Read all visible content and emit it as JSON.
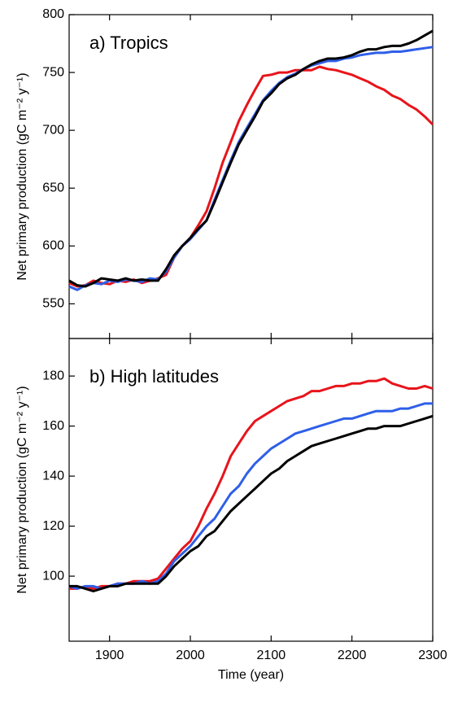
{
  "chart_data": [
    {
      "type": "line",
      "title": "a) Tropics",
      "y_label": "Net primary production (gC m⁻² y⁻¹)",
      "x": [
        1850,
        1860,
        1870,
        1880,
        1890,
        1900,
        1910,
        1920,
        1930,
        1940,
        1950,
        1960,
        1970,
        1980,
        1990,
        2000,
        2010,
        2020,
        2030,
        2040,
        2050,
        2060,
        2070,
        2080,
        2090,
        2100,
        2110,
        2120,
        2130,
        2140,
        2150,
        2160,
        2170,
        2180,
        2190,
        2200,
        2210,
        2220,
        2230,
        2240,
        2250,
        2260,
        2270,
        2280,
        2290,
        2300
      ],
      "series": [
        {
          "color": "#e8141b",
          "values": [
            568,
            565,
            566,
            570,
            568,
            567,
            570,
            569,
            571,
            568,
            570,
            572,
            575,
            590,
            600,
            607,
            618,
            630,
            650,
            672,
            690,
            708,
            722,
            735,
            747,
            748,
            750,
            750,
            752,
            752,
            752,
            755,
            753,
            752,
            750,
            748,
            745,
            742,
            738,
            735,
            730,
            727,
            722,
            718,
            712,
            705
          ]
        },
        {
          "color": "#2f5fe8",
          "values": [
            565,
            562,
            566,
            568,
            567,
            570,
            569,
            571,
            570,
            569,
            572,
            571,
            578,
            590,
            600,
            606,
            614,
            622,
            640,
            657,
            674,
            690,
            702,
            714,
            726,
            734,
            741,
            746,
            749,
            753,
            756,
            758,
            760,
            760,
            762,
            763,
            765,
            766,
            767,
            767,
            768,
            768,
            769,
            770,
            771,
            772
          ]
        },
        {
          "color": "#000000",
          "values": [
            570,
            566,
            565,
            568,
            572,
            571,
            570,
            572,
            570,
            571,
            570,
            570,
            580,
            592,
            600,
            607,
            615,
            622,
            638,
            655,
            672,
            688,
            700,
            712,
            725,
            732,
            740,
            745,
            748,
            753,
            757,
            760,
            762,
            762,
            763,
            765,
            768,
            770,
            770,
            772,
            773,
            773,
            775,
            778,
            782,
            786
          ]
        }
      ],
      "ylim": [
        520,
        800
      ],
      "yticks": [
        550,
        600,
        650,
        700,
        750,
        800
      ]
    },
    {
      "type": "line",
      "title": "b) High latitudes",
      "y_label": "Net primary production (gC m⁻² y⁻¹)",
      "x_label": "Time (year)",
      "x": [
        1850,
        1860,
        1870,
        1880,
        1890,
        1900,
        1910,
        1920,
        1930,
        1940,
        1950,
        1960,
        1970,
        1980,
        1990,
        2000,
        2010,
        2020,
        2030,
        2040,
        2050,
        2060,
        2070,
        2080,
        2090,
        2100,
        2110,
        2120,
        2130,
        2140,
        2150,
        2160,
        2170,
        2180,
        2190,
        2200,
        2210,
        2220,
        2230,
        2240,
        2250,
        2260,
        2270,
        2280,
        2290,
        2300
      ],
      "series": [
        {
          "color": "#e8141b",
          "values": [
            95,
            95,
            96,
            95,
            96,
            96,
            97,
            97,
            98,
            98,
            98,
            99,
            103,
            107,
            111,
            114,
            120,
            127,
            133,
            140,
            148,
            153,
            158,
            162,
            164,
            166,
            168,
            170,
            171,
            172,
            174,
            174,
            175,
            176,
            176,
            177,
            177,
            178,
            178,
            179,
            177,
            176,
            175,
            175,
            176,
            175
          ]
        },
        {
          "color": "#2f5fe8",
          "values": [
            96,
            95,
            96,
            96,
            95,
            96,
            97,
            97,
            97,
            98,
            97,
            98,
            101,
            106,
            109,
            112,
            116,
            120,
            123,
            128,
            133,
            136,
            141,
            145,
            148,
            151,
            153,
            155,
            157,
            158,
            159,
            160,
            161,
            162,
            163,
            163,
            164,
            165,
            166,
            166,
            166,
            167,
            167,
            168,
            169,
            169
          ]
        },
        {
          "color": "#000000",
          "values": [
            96,
            96,
            95,
            94,
            95,
            96,
            96,
            97,
            97,
            97,
            97,
            97,
            100,
            104,
            107,
            110,
            112,
            116,
            118,
            122,
            126,
            129,
            132,
            135,
            138,
            141,
            143,
            146,
            148,
            150,
            152,
            153,
            154,
            155,
            156,
            157,
            158,
            159,
            159,
            160,
            160,
            160,
            161,
            162,
            163,
            164
          ]
        }
      ],
      "xlim": [
        1850,
        2300
      ],
      "xticks": [
        1900,
        2000,
        2100,
        2200,
        2300
      ],
      "ylim": [
        74,
        195
      ],
      "yticks": [
        100,
        120,
        140,
        160,
        180
      ]
    }
  ]
}
